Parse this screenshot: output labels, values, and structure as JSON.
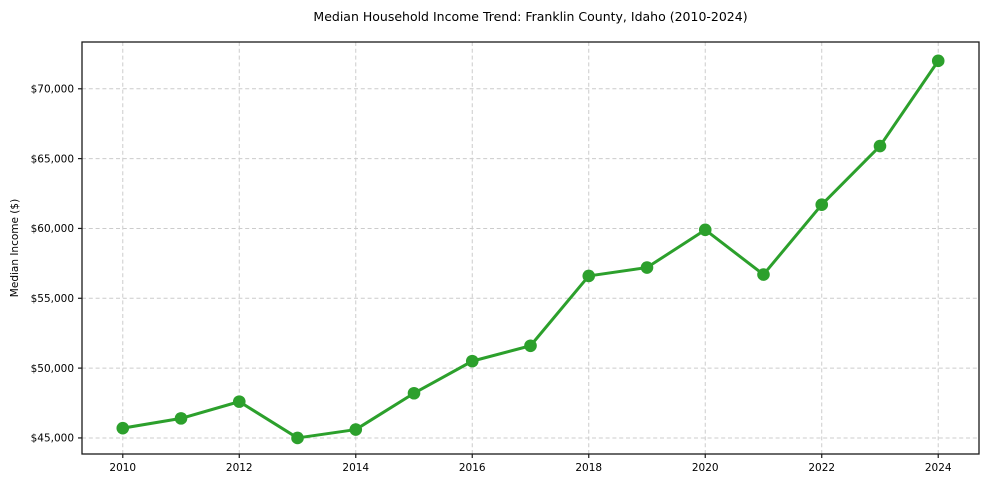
{
  "chart_data": {
    "type": "line",
    "title": "Median Household Income Trend: Franklin County, Idaho (2010-2024)",
    "xlabel": "",
    "ylabel": "Median Income ($)",
    "x": [
      2010,
      2011,
      2012,
      2013,
      2014,
      2015,
      2016,
      2017,
      2018,
      2019,
      2020,
      2021,
      2022,
      2023,
      2024
    ],
    "values": [
      45700,
      46400,
      47600,
      45000,
      45600,
      48200,
      50500,
      51600,
      56600,
      57200,
      59900,
      56700,
      61700,
      65900,
      72000
    ],
    "line_color": "#2ca02c",
    "marker": "circle",
    "xlim": [
      2009.3,
      2024.7
    ],
    "ylim": [
      43850,
      73350
    ],
    "xticks": {
      "values": [
        2010,
        2012,
        2014,
        2016,
        2018,
        2020,
        2022,
        2024
      ],
      "labels": [
        "2010",
        "2012",
        "2014",
        "2016",
        "2018",
        "2020",
        "2022",
        "2024"
      ]
    },
    "yticks": {
      "values": [
        45000,
        50000,
        55000,
        60000,
        65000,
        70000
      ],
      "labels": [
        "$45,000",
        "$50,000",
        "$55,000",
        "$60,000",
        "$65,000",
        "$70,000"
      ]
    },
    "grid": true,
    "grid_line_style": "dashed",
    "legend": "none"
  },
  "style": {
    "background": "#ffffff",
    "grid_color": "#cccccc",
    "axis_color": "#1a1a1a",
    "text_color": "#000000"
  }
}
